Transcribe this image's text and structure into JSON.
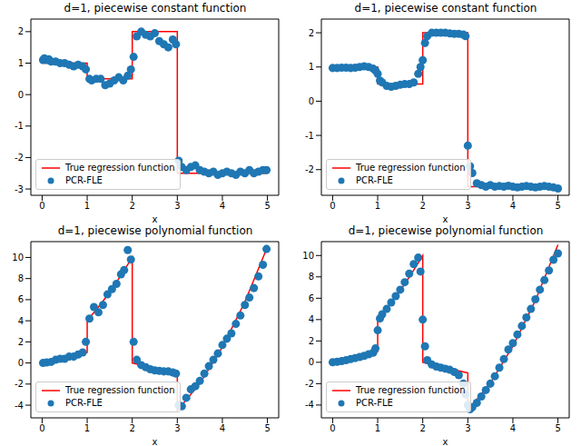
{
  "chart_data": [
    {
      "type": "scatter",
      "title": "d=1, piecewise constant function",
      "x_label": "x",
      "legend": "lower left",
      "xlim": [
        -0.25,
        5.25
      ],
      "xticks": [
        0,
        1,
        2,
        3,
        4,
        5
      ],
      "ylim": [
        -3.2,
        2.4
      ],
      "yticks": [
        -3,
        -2,
        -1,
        0,
        1,
        2
      ],
      "series": [
        {
          "name": "True regression function",
          "type": "line",
          "line_style": "solid",
          "color": "#ff0000",
          "x": [
            0,
            1,
            1,
            2,
            2,
            3,
            3,
            5
          ],
          "values": [
            1,
            1,
            0.5,
            0.5,
            2,
            2,
            -2.5,
            -2.5
          ]
        },
        {
          "name": "PCR-FLE",
          "type": "scatter",
          "marker": "o",
          "color": "#1f77b4",
          "x": [
            0.02,
            0.05,
            0.1,
            0.15,
            0.2,
            0.3,
            0.4,
            0.5,
            0.6,
            0.7,
            0.8,
            0.9,
            0.97,
            1.05,
            1.1,
            1.2,
            1.3,
            1.4,
            1.5,
            1.6,
            1.7,
            1.8,
            1.9,
            1.97,
            2.03,
            2.1,
            2.2,
            2.3,
            2.4,
            2.5,
            2.6,
            2.7,
            2.8,
            2.9,
            2.97,
            3.03,
            3.1,
            3.2,
            3.3,
            3.4,
            3.5,
            3.6,
            3.7,
            3.8,
            3.9,
            4.0,
            4.1,
            4.2,
            4.3,
            4.4,
            4.5,
            4.6,
            4.7,
            4.8,
            4.9,
            4.98
          ],
          "values": [
            1.1,
            1.15,
            1.1,
            1.12,
            1.05,
            1.05,
            1.0,
            1.0,
            0.95,
            0.9,
            0.95,
            0.9,
            0.8,
            0.5,
            0.45,
            0.5,
            0.5,
            0.3,
            0.35,
            0.45,
            0.55,
            0.45,
            0.6,
            0.8,
            1.2,
            1.85,
            2.0,
            1.9,
            1.85,
            1.95,
            1.7,
            1.6,
            1.5,
            1.75,
            1.6,
            -2.1,
            -2.3,
            -2.4,
            -2.3,
            -2.25,
            -2.4,
            -2.45,
            -2.5,
            -2.45,
            -2.55,
            -2.5,
            -2.45,
            -2.5,
            -2.55,
            -2.45,
            -2.5,
            -2.4,
            -2.5,
            -2.45,
            -2.4,
            -2.4
          ]
        }
      ]
    },
    {
      "type": "scatter",
      "title": "d=1, piecewise constant function",
      "x_label": "x",
      "legend": "lower left",
      "xlim": [
        -0.25,
        5.25
      ],
      "xticks": [
        0,
        1,
        2,
        3,
        4,
        5
      ],
      "ylim": [
        -2.75,
        2.4
      ],
      "yticks": [
        -2,
        -1,
        0,
        1,
        2
      ],
      "series": [
        {
          "name": "True regression function",
          "type": "line",
          "line_style": "solid",
          "color": "#ff0000",
          "x": [
            0,
            1,
            1,
            2,
            2,
            3,
            3,
            5
          ],
          "values": [
            1,
            1,
            0.5,
            0.5,
            2,
            2,
            -2.5,
            -2.5
          ]
        },
        {
          "name": "PCR-FLE",
          "type": "scatter",
          "marker": "o",
          "color": "#1f77b4",
          "x": [
            0,
            0.1,
            0.2,
            0.3,
            0.4,
            0.5,
            0.6,
            0.7,
            0.8,
            0.9,
            0.95,
            1.0,
            1.05,
            1.1,
            1.2,
            1.3,
            1.4,
            1.5,
            1.6,
            1.7,
            1.8,
            1.9,
            1.95,
            2.0,
            2.05,
            2.1,
            2.2,
            2.3,
            2.4,
            2.5,
            2.6,
            2.7,
            2.8,
            2.9,
            2.95,
            3.0,
            3.05,
            3.1,
            3.2,
            3.3,
            3.4,
            3.5,
            3.6,
            3.7,
            3.8,
            3.9,
            4.0,
            4.1,
            4.2,
            4.3,
            4.4,
            4.5,
            4.6,
            4.7,
            4.8,
            4.9,
            5.0
          ],
          "values": [
            0.97,
            0.97,
            0.98,
            0.98,
            0.97,
            0.98,
            1.0,
            1.02,
            1.0,
            0.95,
            0.9,
            0.8,
            0.6,
            0.55,
            0.45,
            0.42,
            0.45,
            0.48,
            0.5,
            0.5,
            0.55,
            0.8,
            1.0,
            1.2,
            1.7,
            1.9,
            2.0,
            2.0,
            2.0,
            2.0,
            1.98,
            1.97,
            1.97,
            1.95,
            1.9,
            -1.3,
            -1.9,
            -2.1,
            -2.4,
            -2.45,
            -2.5,
            -2.45,
            -2.5,
            -2.48,
            -2.5,
            -2.47,
            -2.5,
            -2.52,
            -2.5,
            -2.48,
            -2.5,
            -2.52,
            -2.5,
            -2.48,
            -2.5,
            -2.52,
            -2.55
          ]
        }
      ]
    },
    {
      "type": "scatter",
      "title": "d=1, piecewise polynomial function",
      "x_label": "x",
      "legend": "lower left",
      "xlim": [
        -0.25,
        5.25
      ],
      "xticks": [
        0,
        1,
        2,
        3,
        4,
        5
      ],
      "ylim": [
        -5.2,
        11.5
      ],
      "yticks": [
        -4,
        -2,
        0,
        2,
        4,
        6,
        8,
        10
      ],
      "series": [
        {
          "name": "True regression function",
          "type": "line",
          "line_style": "solid",
          "color": "#ff0000",
          "x": [
            0,
            0.25,
            0.5,
            0.75,
            1,
            1,
            1.25,
            1.5,
            1.75,
            2,
            2,
            2.5,
            3,
            3,
            3.5,
            4,
            4.5,
            5
          ],
          "values": [
            0,
            0.1,
            0.3,
            0.6,
            1.0,
            4,
            5.3,
            6.7,
            8.3,
            10,
            0,
            -0.5,
            -1,
            -4.5,
            -1.94,
            1.5,
            5.8,
            11
          ]
        },
        {
          "name": "PCR-FLE",
          "type": "scatter",
          "marker": "o",
          "color": "#1f77b4",
          "x": [
            0.02,
            0.1,
            0.2,
            0.3,
            0.4,
            0.5,
            0.6,
            0.7,
            0.8,
            0.9,
            0.97,
            1.05,
            1.15,
            1.25,
            1.35,
            1.45,
            1.55,
            1.65,
            1.75,
            1.82,
            1.9,
            1.97,
            2.03,
            2.1,
            2.2,
            2.3,
            2.4,
            2.5,
            2.6,
            2.7,
            2.8,
            2.9,
            2.97,
            3.03,
            3.1,
            3.2,
            3.3,
            3.4,
            3.5,
            3.6,
            3.7,
            3.8,
            3.9,
            4.0,
            4.1,
            4.2,
            4.3,
            4.4,
            4.5,
            4.6,
            4.7,
            4.8,
            4.9,
            4.98
          ],
          "values": [
            0.0,
            0.05,
            0.1,
            0.3,
            0.4,
            0.4,
            0.6,
            0.6,
            0.8,
            1.0,
            2.0,
            4.2,
            5.3,
            4.8,
            5.5,
            6.5,
            7.0,
            7.5,
            8.4,
            8.8,
            10.7,
            9.8,
            2.0,
            0.3,
            -0.2,
            -0.4,
            -0.6,
            -0.7,
            -0.75,
            -0.8,
            -0.8,
            -0.9,
            -1.0,
            -4.0,
            -4.1,
            -3.3,
            -2.5,
            -2.2,
            -1.7,
            -1.0,
            -0.3,
            0.3,
            0.9,
            1.7,
            2.3,
            2.8,
            3.7,
            4.5,
            5.5,
            6.2,
            7.1,
            8.2,
            9.3,
            10.8
          ]
        }
      ]
    },
    {
      "type": "scatter",
      "title": "d=1, piecewise polynomial function",
      "x_label": "x",
      "legend": "lower left",
      "xlim": [
        -0.25,
        5.25
      ],
      "xticks": [
        0,
        1,
        2,
        3,
        4,
        5
      ],
      "ylim": [
        -5.2,
        11.3
      ],
      "yticks": [
        -4,
        -2,
        0,
        2,
        4,
        6,
        8,
        10
      ],
      "series": [
        {
          "name": "True regression function",
          "type": "line",
          "line_style": "solid",
          "color": "#ff0000",
          "x": [
            0,
            0.25,
            0.5,
            0.75,
            1,
            1,
            1.25,
            1.5,
            1.75,
            2,
            2,
            2.5,
            3,
            3,
            3.5,
            4,
            4.5,
            5
          ],
          "values": [
            0,
            0.1,
            0.3,
            0.6,
            1.0,
            4,
            5.3,
            6.7,
            8.3,
            10,
            0,
            -0.5,
            -1,
            -4.5,
            -1.94,
            1.5,
            5.8,
            11
          ]
        },
        {
          "name": "PCR-FLE",
          "type": "scatter",
          "marker": "o",
          "color": "#1f77b4",
          "x": [
            0,
            0.1,
            0.2,
            0.3,
            0.4,
            0.5,
            0.6,
            0.7,
            0.8,
            0.9,
            0.95,
            1.0,
            1.05,
            1.1,
            1.2,
            1.3,
            1.4,
            1.5,
            1.6,
            1.7,
            1.8,
            1.9,
            1.95,
            2.0,
            2.05,
            2.1,
            2.2,
            2.3,
            2.4,
            2.5,
            2.6,
            2.7,
            2.8,
            2.9,
            2.95,
            3.0,
            3.05,
            3.1,
            3.2,
            3.3,
            3.4,
            3.5,
            3.6,
            3.7,
            3.8,
            3.9,
            4.0,
            4.1,
            4.2,
            4.3,
            4.4,
            4.5,
            4.6,
            4.7,
            4.8,
            4.9,
            5.0
          ],
          "values": [
            0.0,
            0.05,
            0.12,
            0.2,
            0.3,
            0.4,
            0.5,
            0.6,
            0.75,
            0.9,
            1.3,
            3.0,
            4.1,
            4.5,
            5.0,
            5.6,
            6.2,
            6.8,
            7.5,
            8.3,
            9.2,
            9.8,
            8.5,
            4.0,
            1.5,
            0.2,
            -0.2,
            -0.4,
            -0.5,
            -0.6,
            -0.7,
            -0.9,
            -1.2,
            -2.0,
            -3.0,
            -4.0,
            -4.4,
            -4.2,
            -3.8,
            -3.2,
            -2.6,
            -2.0,
            -1.3,
            -0.5,
            0.3,
            1.2,
            1.8,
            2.6,
            3.4,
            4.2,
            5.0,
            5.9,
            6.8,
            7.7,
            8.6,
            9.6,
            10.2
          ]
        }
      ]
    }
  ]
}
